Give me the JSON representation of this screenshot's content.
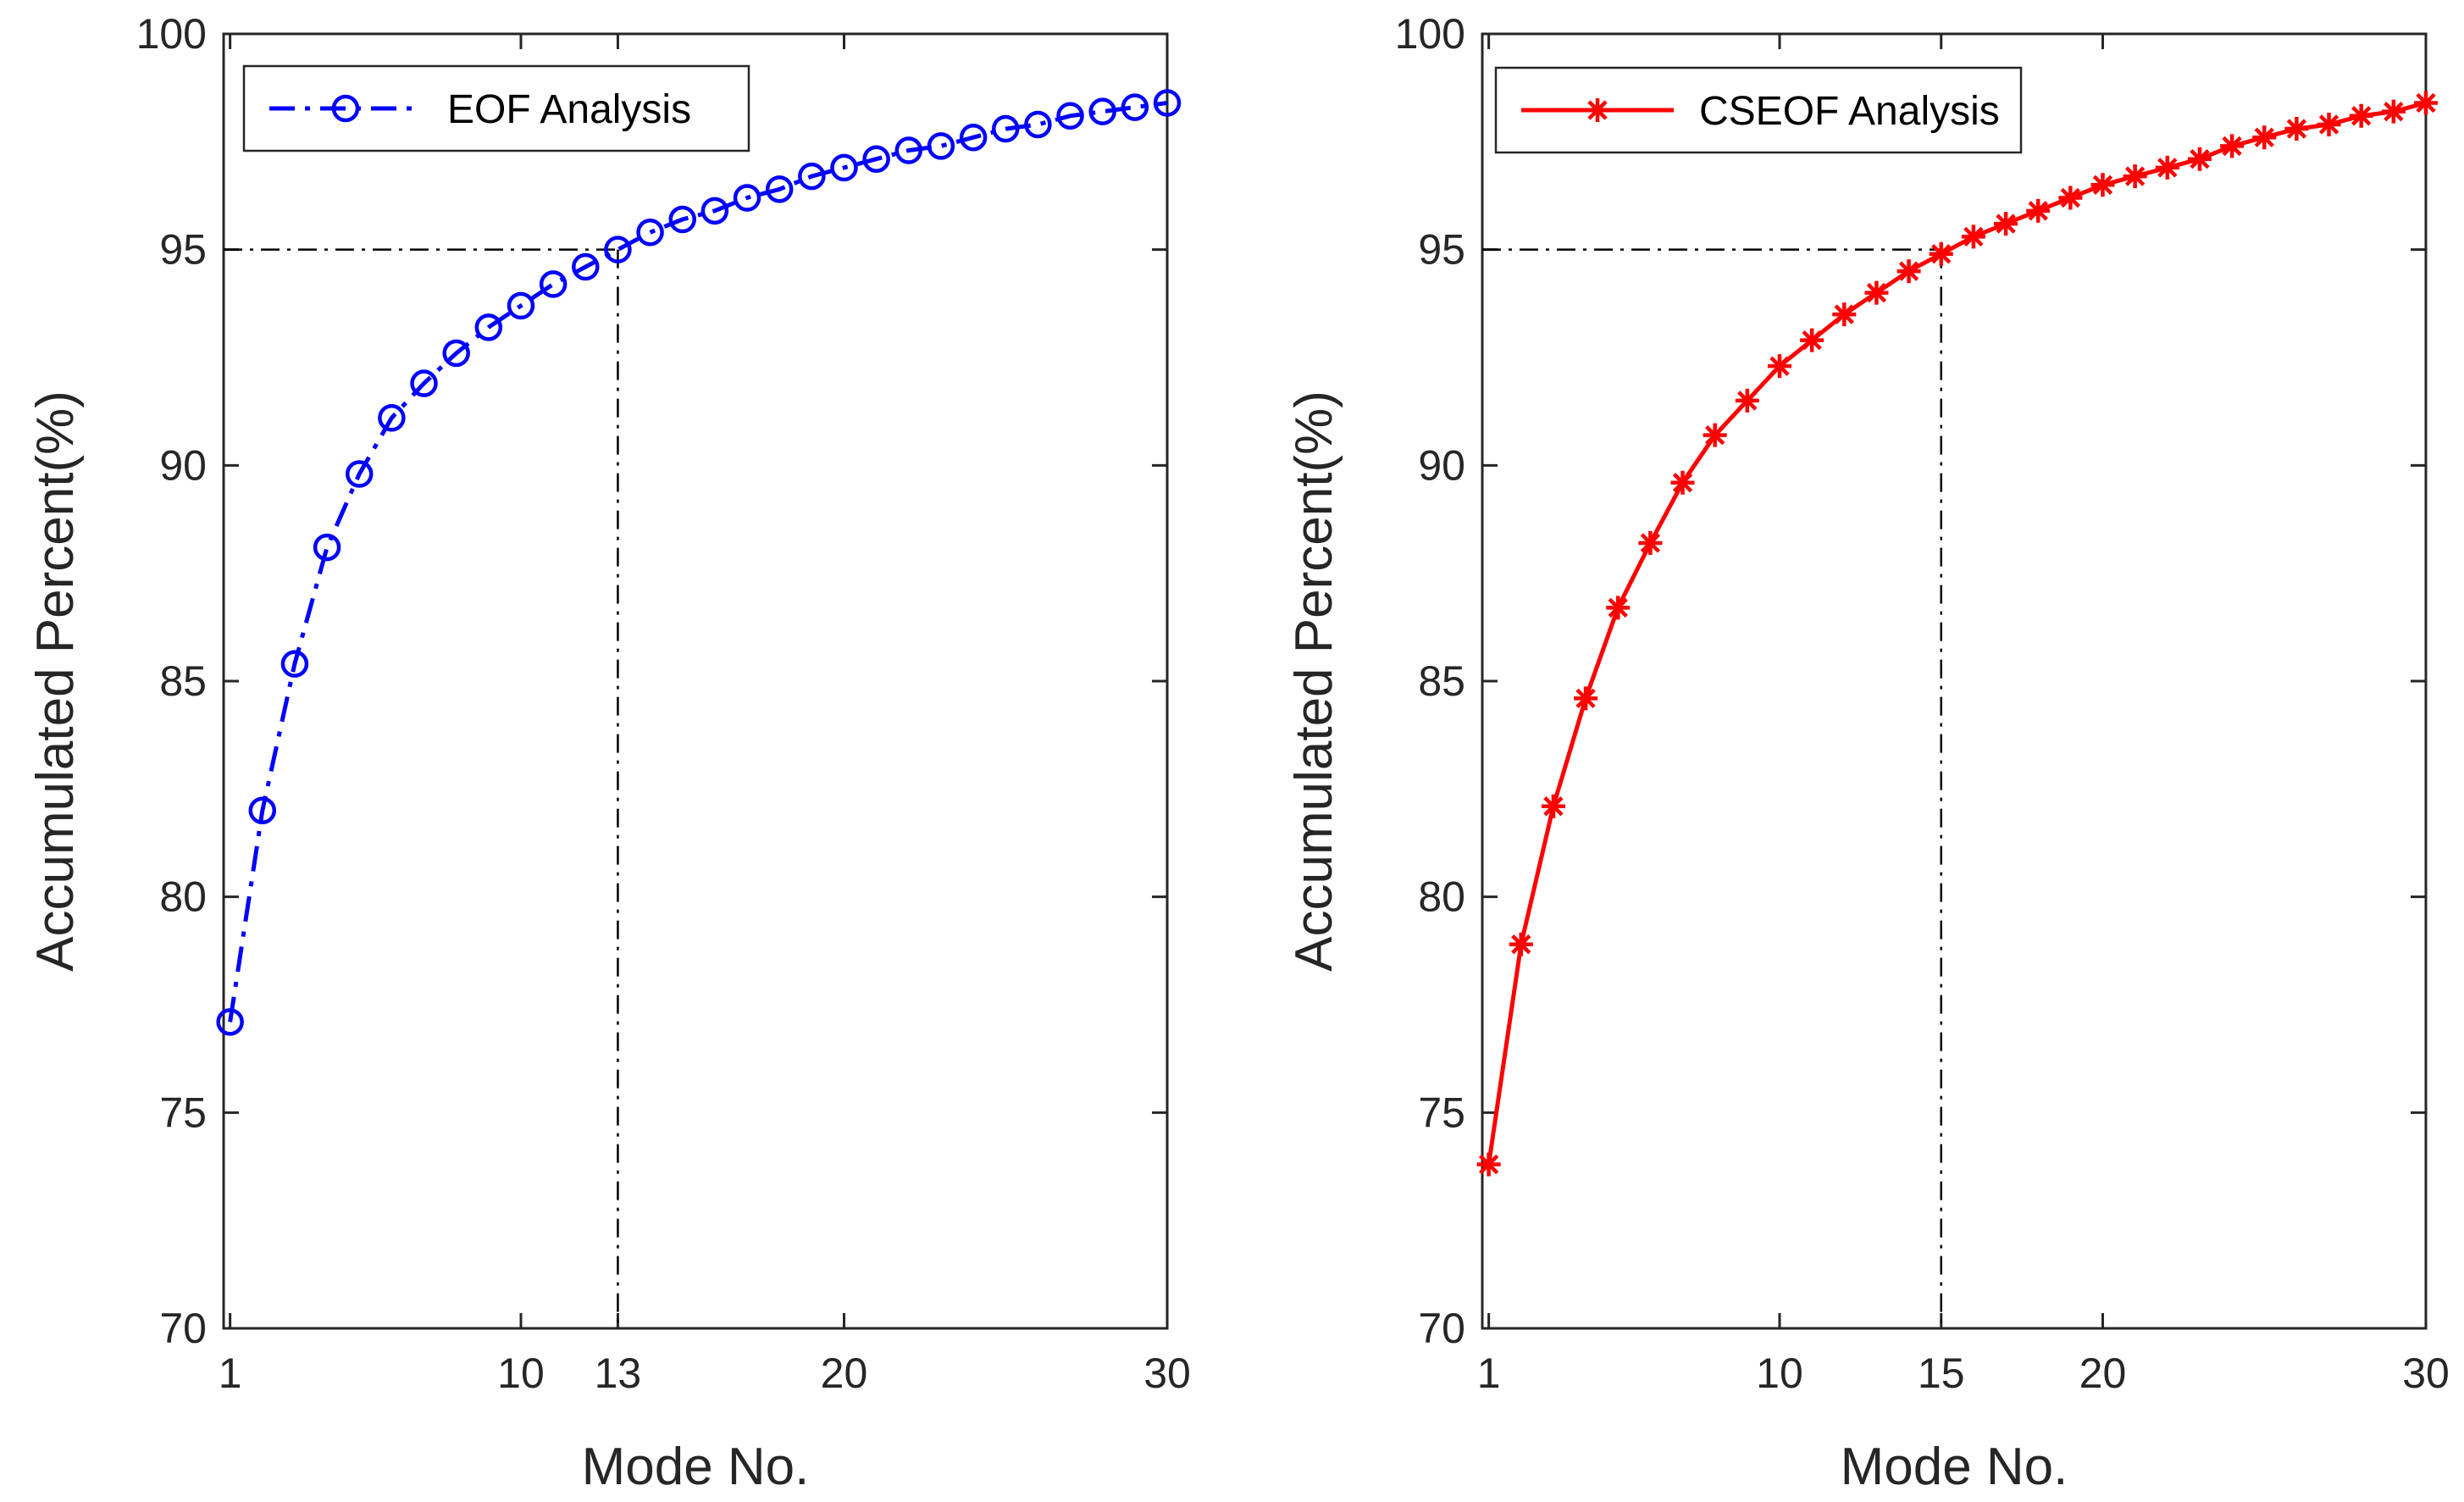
{
  "chart_data": [
    {
      "type": "line",
      "name": "eof",
      "series": [
        {
          "name": "EOF Analysis",
          "color": "#0000ff",
          "line_style": "dash-dot",
          "marker": "circle",
          "x": [
            1,
            2,
            3,
            4,
            5,
            6,
            7,
            8,
            9,
            10,
            11,
            12,
            13,
            14,
            15,
            16,
            17,
            18,
            19,
            20,
            21,
            22,
            23,
            24,
            25,
            26,
            27,
            28,
            29,
            30
          ],
          "values": [
            77.1,
            82.0,
            85.4,
            88.1,
            89.8,
            91.1,
            91.9,
            92.6,
            93.2,
            93.7,
            94.2,
            94.6,
            95.0,
            95.4,
            95.7,
            95.9,
            96.2,
            96.4,
            96.7,
            96.9,
            97.1,
            97.3,
            97.4,
            97.6,
            97.8,
            97.9,
            98.1,
            98.2,
            98.3,
            98.4
          ]
        }
      ],
      "threshold": {
        "x": 13,
        "y": 95
      },
      "xlabel": "Mode No.",
      "ylabel": "Accumulated Percent(%)",
      "xlim": [
        0.8,
        30
      ],
      "ylim": [
        70,
        100
      ],
      "xticks": [
        1,
        10,
        13,
        20,
        30
      ],
      "yticks": [
        70,
        75,
        80,
        85,
        90,
        95,
        100
      ],
      "legend_position": "top-left"
    },
    {
      "type": "line",
      "name": "cseof",
      "series": [
        {
          "name": "CSEOF Analysis",
          "color": "#ff0000",
          "line_style": "solid",
          "marker": "asterisk",
          "x": [
            1,
            2,
            3,
            4,
            5,
            6,
            7,
            8,
            9,
            10,
            11,
            12,
            13,
            14,
            15,
            16,
            17,
            18,
            19,
            20,
            21,
            22,
            23,
            24,
            25,
            26,
            27,
            28,
            29,
            30
          ],
          "values": [
            73.8,
            78.9,
            82.1,
            84.6,
            86.7,
            88.2,
            89.6,
            90.7,
            91.5,
            92.3,
            92.9,
            93.5,
            94.0,
            94.5,
            94.9,
            95.3,
            95.6,
            95.9,
            96.2,
            96.5,
            96.7,
            96.9,
            97.1,
            97.4,
            97.6,
            97.8,
            97.9,
            98.1,
            98.2,
            98.4
          ]
        }
      ],
      "threshold": {
        "x": 15,
        "y": 95
      },
      "xlabel": "Mode No.",
      "ylabel": "Accumulated Percent(%)",
      "xlim": [
        0.8,
        30
      ],
      "ylim": [
        70,
        100
      ],
      "xticks": [
        1,
        10,
        15,
        20,
        30
      ],
      "yticks": [
        70,
        75,
        80,
        85,
        90,
        95,
        100
      ],
      "legend_position": "top-left"
    }
  ]
}
